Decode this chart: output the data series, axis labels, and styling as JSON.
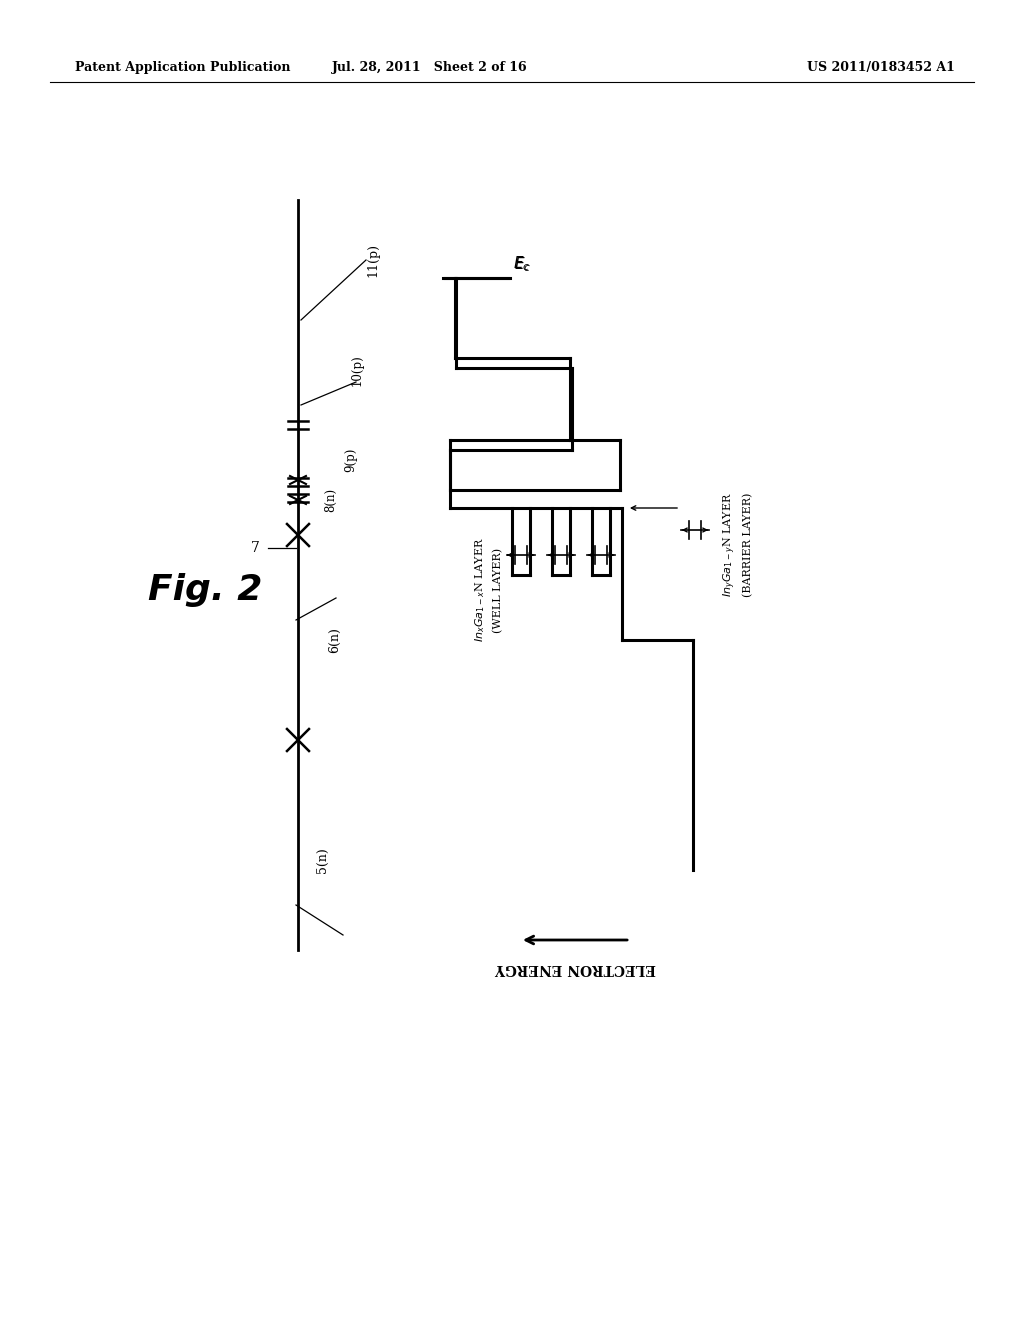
{
  "header_left": "Patent Application Publication",
  "header_mid": "Jul. 28, 2011   Sheet 2 of 16",
  "header_right": "US 2011/0183452 A1",
  "fig_label": "Fig. 2",
  "bg_color": "#ffffff",
  "line_color": "#000000"
}
